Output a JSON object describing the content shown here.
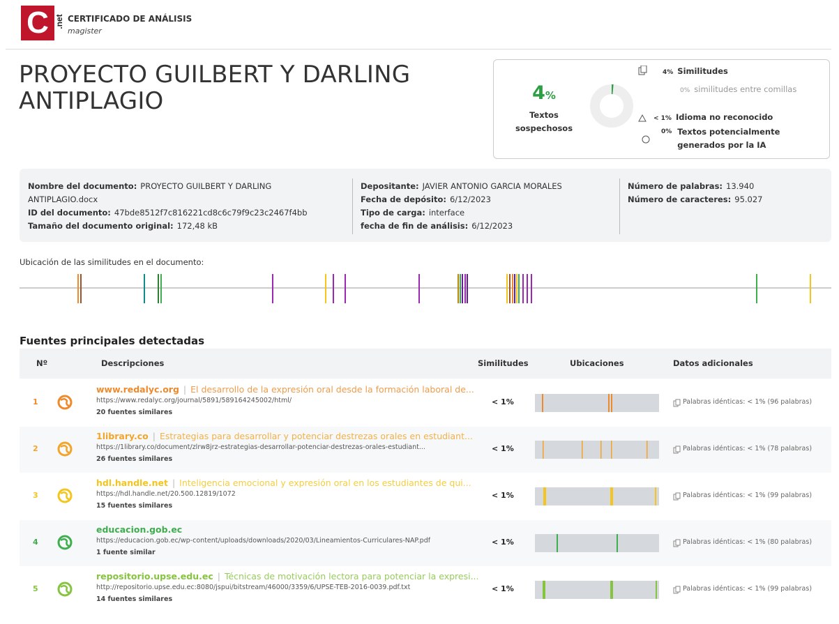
{
  "header": {
    "logo_letter": "C",
    "logo_suffix": ".net",
    "title": "CERTIFICADO DE ANÁLISIS",
    "subtitle": "magister"
  },
  "document_title": [
    "PROYECTO GUILBERT Y DARLING",
    "ANTIPLAGIO"
  ],
  "summary": {
    "percent": "4",
    "percent_unit": "%",
    "label": "Textos sospechosos",
    "items": [
      {
        "value": "4%",
        "label": "Similitudes"
      },
      {
        "value": "0%",
        "label": "similitudes entre comillas"
      },
      {
        "value": "< 1%",
        "label": "Idioma no reconocido"
      },
      {
        "value": "0%",
        "label": "Textos potencialmente generados por la IA"
      }
    ]
  },
  "info": {
    "columns": [
      [
        {
          "label": "Nombre del documento:",
          "value": "PROYECTO GUILBERT Y DARLING ANTIPLAGIO.docx"
        },
        {
          "label": "ID del documento:",
          "value": "47bde8512f7c816221cd8c6c79f9c23c2467f4bb"
        },
        {
          "label": "Tamaño del documento original:",
          "value": "172,48 kB"
        }
      ],
      [
        {
          "label": "Depositante:",
          "value": "JAVIER ANTONIO GARCIA MORALES"
        },
        {
          "label": "Fecha de depósito:",
          "value": "6/12/2023"
        },
        {
          "label": "Tipo de carga:",
          "value": "interface"
        },
        {
          "label": "fecha de fin de análisis:",
          "value": "6/12/2023"
        }
      ],
      [
        {
          "label": "Número de palabras:",
          "value": "13.940"
        },
        {
          "label": "Número de caracteres:",
          "value": "95.027"
        }
      ]
    ]
  },
  "locations_label": "Ubicación de las similitudes en el documento:",
  "sources": {
    "title": "Fuentes principales detectadas",
    "separator": "|",
    "columns": [
      "Nº",
      "Descripciones",
      "Similitudes",
      "Ubicaciones",
      "Datos adicionales"
    ],
    "rows": [
      {
        "number": "1",
        "domain": "www.redalyc.org",
        "title": "El desarrollo de la expresión oral desde la formación laboral de...",
        "url": "https://www.redalyc.org/journal/5891/589164245002/html/",
        "similar": "20 fuentes similares",
        "similarity": "< 1%",
        "extra": "Palabras idénticas: < 1% (96 palabras)",
        "color": "#ef8a2b"
      },
      {
        "number": "2",
        "domain": "1library.co",
        "title": "Estrategias para desarrollar y potenciar destrezas orales en estudiant...",
        "url": "https://1library.co/document/zlrw8jrz-estrategias-desarrollar-potenciar-destrezas-orales-estudiant...",
        "similar": "26 fuentes similares",
        "similarity": "< 1%",
        "extra": "Palabras idénticas: < 1% (78 palabras)",
        "color": "#f2a52a"
      },
      {
        "number": "3",
        "domain": "hdl.handle.net",
        "title": "Inteligencia emocional y expresión oral en los estudiantes de qui...",
        "url": "https://hdl.handle.net/20.500.12819/1072",
        "similar": "15 fuentes similares",
        "similarity": "< 1%",
        "extra": "Palabras idénticas: < 1% (99 palabras)",
        "color": "#f3c51d"
      },
      {
        "number": "4",
        "domain": "educacion.gob.ec",
        "title": null,
        "url": "https://educacion.gob.ec/wp-content/uploads/downloads/2020/03/Lineamientos-Curriculares-NAP.pdf",
        "similar": "1 fuente similar",
        "similarity": "< 1%",
        "extra": "Palabras idénticas: < 1% (80 palabras)",
        "color": "#3fae4e"
      },
      {
        "number": "5",
        "domain": "repositorio.upse.edu.ec",
        "title": "Técnicas de motivación lectora para potenciar la expresi...",
        "url": "http://repositorio.upse.edu.ec:8080/jspui/bitstream/46000/3359/6/UPSE-TEB-2016-0039.pdf.txt",
        "similar": "14 fuentes similares",
        "similarity": "< 1%",
        "extra": "Palabras idénticas: < 1% (99 palabras)",
        "color": "#86c440"
      }
    ]
  }
}
